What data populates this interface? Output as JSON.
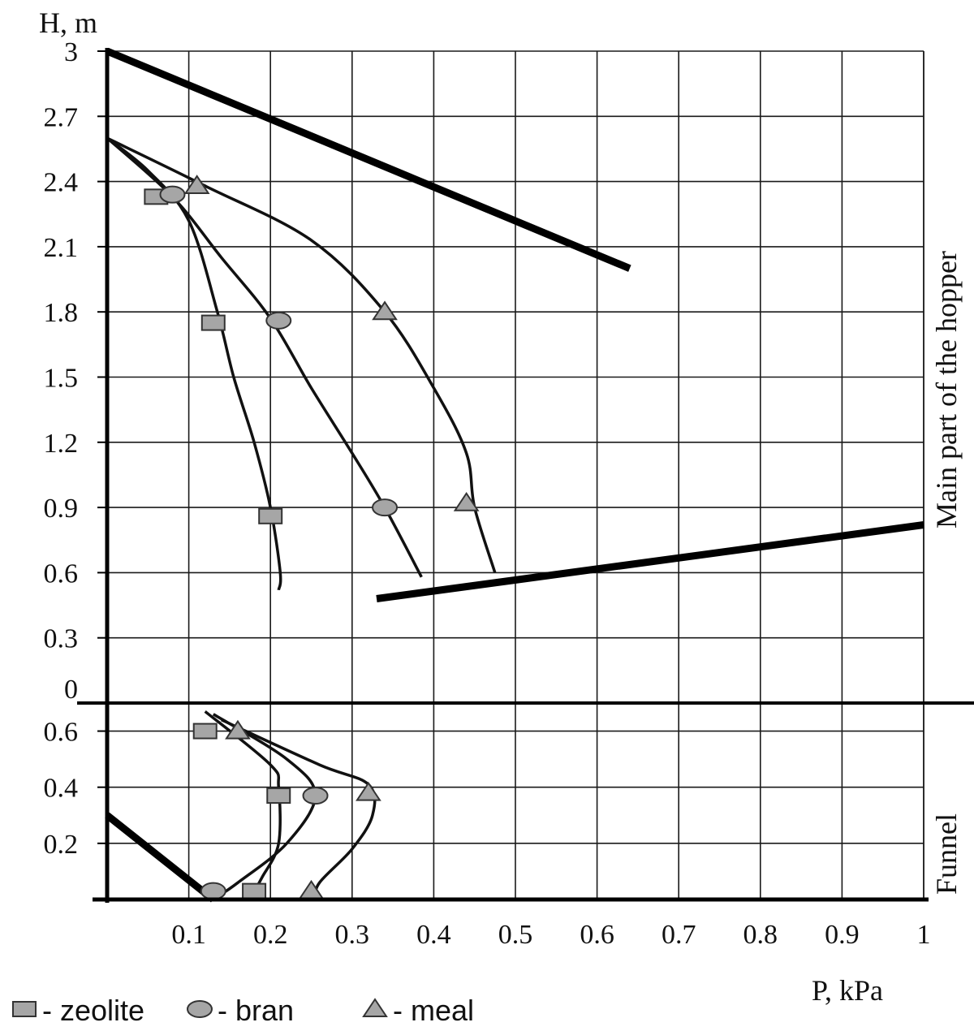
{
  "chart_data": {
    "type": "line",
    "xlabel": "P, kPa",
    "ylabel": "H, m",
    "x_ticks": [
      "0.1",
      "0.2",
      "0.3",
      "0.4",
      "0.5",
      "0.6",
      "0.7",
      "0.8",
      "0.9",
      "1"
    ],
    "xlim": [
      0,
      1
    ],
    "grid": true,
    "main_part": {
      "label": "Main part of the hopper",
      "y_ticks": [
        "0",
        "0.3",
        "0.6",
        "0.9",
        "1.2",
        "1.5",
        "1.8",
        "2.1",
        "2.4",
        "2.7",
        "3"
      ],
      "ylim": [
        0,
        3
      ],
      "series": [
        {
          "name": "zeolite",
          "marker": "square",
          "curve": [
            [
              0.0,
              2.6
            ],
            [
              0.05,
              2.45
            ],
            [
              0.1,
              2.22
            ],
            [
              0.135,
              1.8
            ],
            [
              0.155,
              1.5
            ],
            [
              0.18,
              1.2
            ],
            [
              0.2,
              0.9
            ],
            [
              0.212,
              0.6
            ],
            [
              0.21,
              0.52
            ]
          ],
          "points": [
            [
              0.06,
              2.33
            ],
            [
              0.13,
              1.75
            ],
            [
              0.2,
              0.86
            ]
          ]
        },
        {
          "name": "bran",
          "marker": "circle",
          "curve": [
            [
              0.0,
              2.6
            ],
            [
              0.08,
              2.33
            ],
            [
              0.14,
              2.05
            ],
            [
              0.2,
              1.77
            ],
            [
              0.25,
              1.45
            ],
            [
              0.3,
              1.15
            ],
            [
              0.34,
              0.9
            ],
            [
              0.385,
              0.58
            ]
          ],
          "points": [
            [
              0.08,
              2.34
            ],
            [
              0.21,
              1.76
            ],
            [
              0.34,
              0.9
            ]
          ]
        },
        {
          "name": "meal",
          "marker": "triangle",
          "curve": [
            [
              0.0,
              2.6
            ],
            [
              0.12,
              2.38
            ],
            [
              0.25,
              2.13
            ],
            [
              0.34,
              1.8
            ],
            [
              0.4,
              1.45
            ],
            [
              0.44,
              1.15
            ],
            [
              0.45,
              0.9
            ],
            [
              0.475,
              0.6
            ]
          ],
          "points": [
            [
              0.11,
              2.38
            ],
            [
              0.34,
              1.8
            ],
            [
              0.44,
              0.92
            ]
          ]
        }
      ],
      "boundary_lines": [
        [
          [
            0.0,
            3.0
          ],
          [
            0.64,
            2.0
          ]
        ],
        [
          [
            0.33,
            0.48
          ],
          [
            1.0,
            0.82
          ]
        ]
      ]
    },
    "funnel": {
      "label": "Funnel",
      "y_ticks": [
        "0.2",
        "0.4",
        "0.6"
      ],
      "ylim": [
        0,
        0.7
      ],
      "series": [
        {
          "name": "zeolite",
          "marker": "square",
          "curve": [
            [
              0.12,
              0.67
            ],
            [
              0.2,
              0.48
            ],
            [
              0.21,
              0.4
            ],
            [
              0.21,
              0.2
            ],
            [
              0.19,
              0.08
            ],
            [
              0.18,
              0.03
            ]
          ],
          "points": [
            [
              0.12,
              0.6
            ],
            [
              0.21,
              0.37
            ],
            [
              0.18,
              0.03
            ]
          ]
        },
        {
          "name": "bran",
          "marker": "circle",
          "curve": [
            [
              0.13,
              0.66
            ],
            [
              0.22,
              0.5
            ],
            [
              0.255,
              0.37
            ],
            [
              0.22,
              0.2
            ],
            [
              0.16,
              0.06
            ],
            [
              0.13,
              0.0
            ]
          ],
          "points": [
            [
              0.13,
              0.03
            ],
            [
              0.255,
              0.37
            ]
          ]
        },
        {
          "name": "meal",
          "marker": "triangle",
          "curve": [
            [
              0.14,
              0.64
            ],
            [
              0.26,
              0.48
            ],
            [
              0.32,
              0.41
            ],
            [
              0.325,
              0.3
            ],
            [
              0.3,
              0.18
            ],
            [
              0.26,
              0.06
            ],
            [
              0.255,
              0.0
            ]
          ],
          "points": [
            [
              0.16,
              0.6
            ],
            [
              0.32,
              0.38
            ],
            [
              0.25,
              0.03
            ]
          ]
        }
      ],
      "boundary_lines": [
        [
          [
            0.0,
            0.3
          ],
          [
            0.13,
            0.0
          ]
        ]
      ]
    },
    "legend": [
      {
        "name": "zeolite",
        "marker": "square",
        "label": "- zeolite"
      },
      {
        "name": "bran",
        "marker": "circle",
        "label": "- bran"
      },
      {
        "name": "meal",
        "marker": "triangle",
        "label": "- meal"
      }
    ]
  }
}
